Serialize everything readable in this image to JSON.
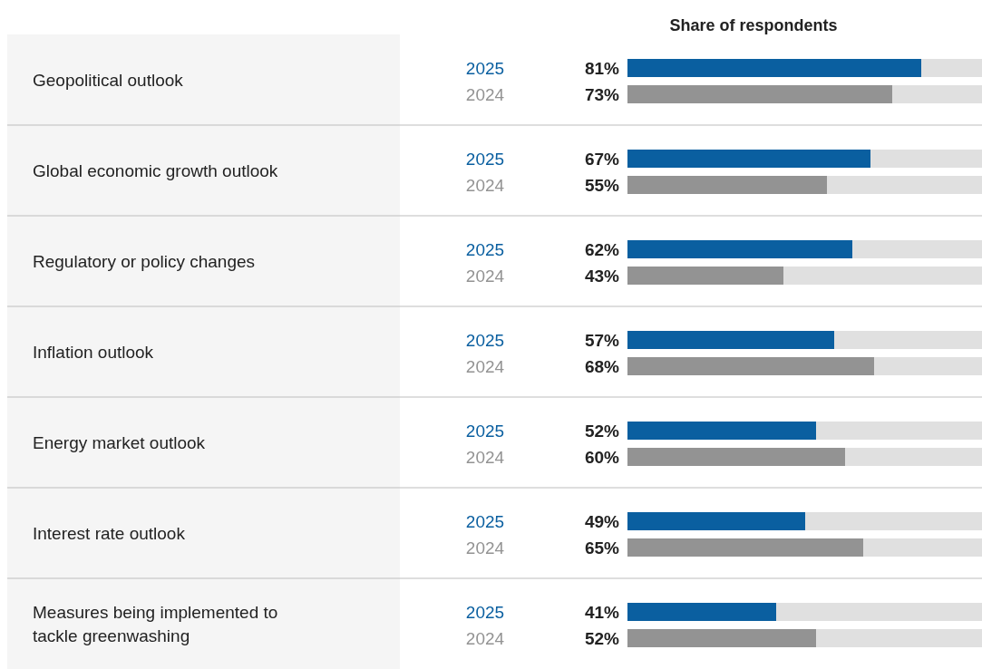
{
  "chart_data": {
    "type": "bar",
    "orientation": "horizontal",
    "title": "Share of respondents",
    "categories": [
      "Geopolitical outlook",
      "Global economic growth outlook",
      "Regulatory or policy changes",
      "Inflation outlook",
      "Energy market outlook",
      "Interest rate outlook",
      "Measures being implemented to tackle greenwashing"
    ],
    "series": [
      {
        "name": "2025",
        "color": "#0a5fa0",
        "values": [
          81,
          67,
          62,
          57,
          52,
          49,
          41
        ],
        "value_labels": [
          "81%",
          "67%",
          "62%",
          "57%",
          "52%",
          "49%",
          "41%"
        ]
      },
      {
        "name": "2024",
        "color": "#939393",
        "values": [
          73,
          55,
          43,
          68,
          60,
          65,
          52
        ],
        "value_labels": [
          "73%",
          "55%",
          "43%",
          "68%",
          "60%",
          "65%",
          "52%"
        ]
      }
    ]
  }
}
